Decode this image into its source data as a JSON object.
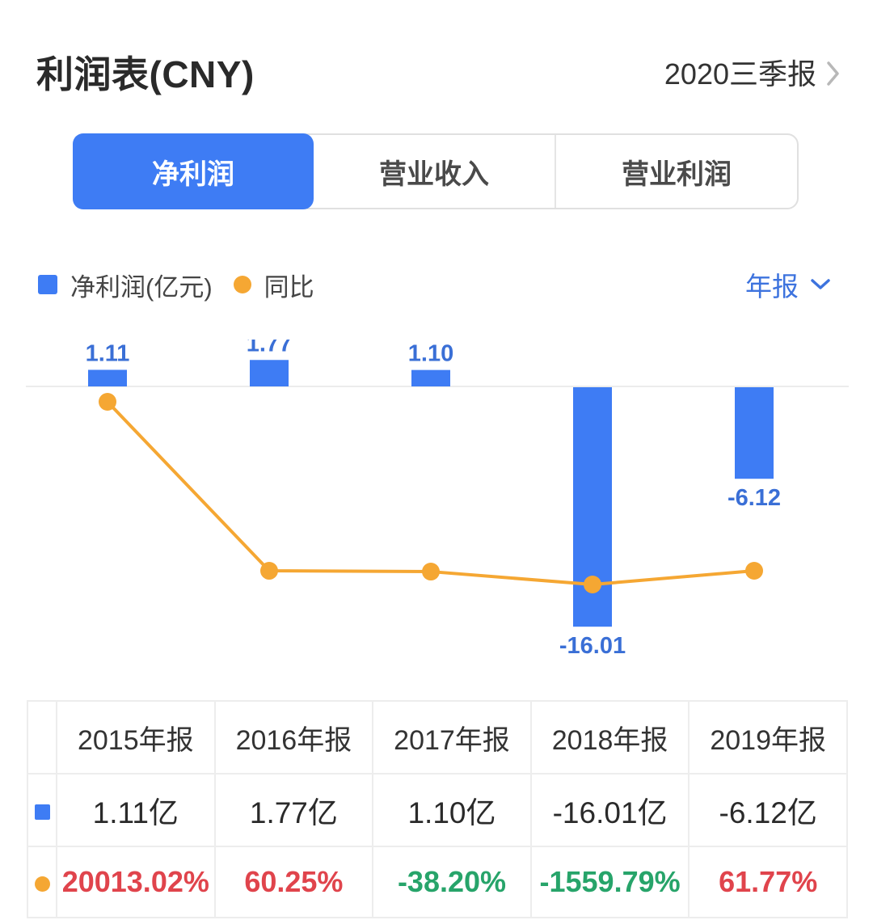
{
  "header": {
    "title": "利润表(CNY)",
    "report_period": "2020三季报"
  },
  "tabs": {
    "items": [
      {
        "label": "净利润",
        "selected": true
      },
      {
        "label": "营业收入",
        "selected": false
      },
      {
        "label": "营业利润",
        "selected": false
      }
    ]
  },
  "legend": {
    "bar_label": "净利润(亿元)",
    "line_label": "同比",
    "period_selector": "年报"
  },
  "colors": {
    "bar_blue": "#3e7cf4",
    "line_orange": "#f5a733",
    "label_blue": "#3a6fd6",
    "accent_blue_text": "#3d73de",
    "positive_red": "#e0444c",
    "negative_green": "#27a46a",
    "baseline_gray": "#ececec"
  },
  "chart_data": {
    "type": "bar",
    "subtype": "bar-line-combo",
    "categories": [
      "2015年报",
      "2016年报",
      "2017年报",
      "2018年报",
      "2019年报"
    ],
    "series": [
      {
        "name": "净利润(亿元)",
        "type": "bar",
        "unit": "亿",
        "values": [
          1.11,
          1.77,
          1.1,
          -16.01,
          -6.12
        ]
      },
      {
        "name": "同比",
        "type": "line",
        "unit": "%",
        "values": [
          20013.02,
          60.25,
          -38.2,
          -1559.79,
          61.77
        ]
      }
    ],
    "title": "",
    "xlabel": "",
    "ylabel": "",
    "baseline": 0,
    "grid": "off",
    "legend_position": "top-left",
    "bar_axis_range_approx": [
      -18,
      3
    ],
    "line_axis_range_approx": [
      -1559.79,
      20013.02
    ]
  },
  "table": {
    "columns": [
      "2015年报",
      "2016年报",
      "2017年报",
      "2018年报",
      "2019年报"
    ],
    "rows": [
      {
        "marker": "blue-square",
        "values": [
          "1.11亿",
          "1.77亿",
          "1.10亿",
          "-16.01亿",
          "-6.12亿"
        ]
      },
      {
        "marker": "orange-circle",
        "values": [
          "20013.02%",
          "60.25%",
          "-38.20%",
          "-1559.79%",
          "61.77%"
        ],
        "colors": [
          "red",
          "red",
          "green",
          "green",
          "red"
        ]
      }
    ]
  }
}
